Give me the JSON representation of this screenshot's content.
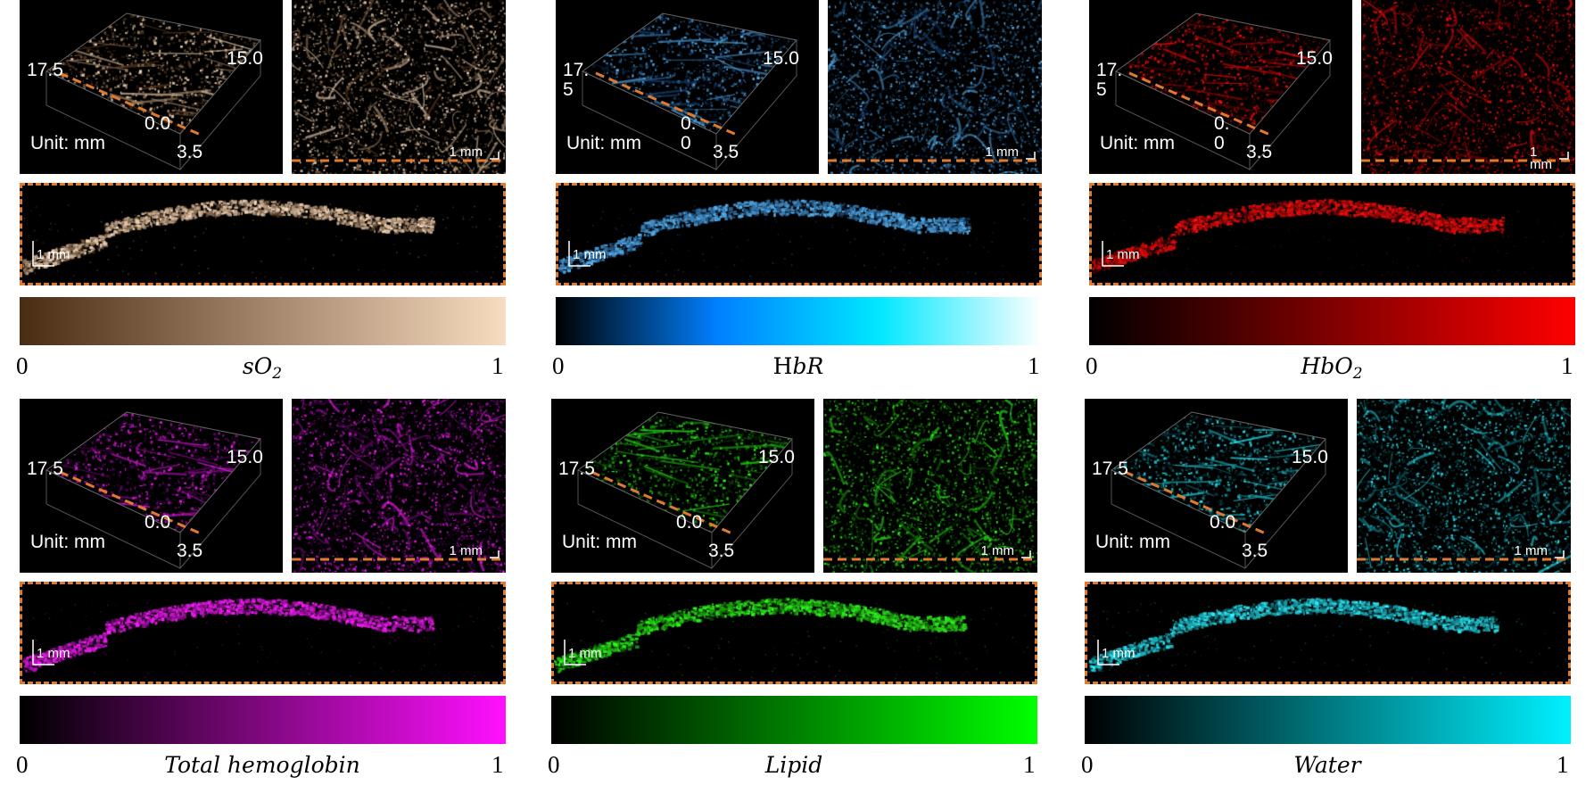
{
  "panels": [
    {
      "key": "so2",
      "caption_main": "sO",
      "caption_sub": "2",
      "caption_style": "italic",
      "color_low": "#4a2c12",
      "color_high": "#f8dcc0",
      "cbar_stops": [
        "#4a2c12",
        "#f8dcc0"
      ],
      "axis_a": "17.5",
      "axis_b": "15.0",
      "axis_c": "0.0",
      "axis_d": "3.5",
      "unit": "Unit: mm",
      "scale": "1 mm"
    },
    {
      "key": "hbr",
      "caption_pre": "H",
      "caption_main": "bR",
      "caption_sub": "",
      "caption_style": "mixed",
      "color_low": "#0a2a55",
      "color_high": "#5ab4f0",
      "cbar_stops": [
        "#000000",
        "#0080ff",
        "#00e8ff",
        "#ffffff"
      ],
      "axis_a": "17.\n5",
      "axis_b": "15.0",
      "axis_c": "0.\n0",
      "axis_d": "3.5",
      "unit": "Unit: mm",
      "scale": "1 mm"
    },
    {
      "key": "hbo2",
      "caption_main": "HbO",
      "caption_sub": "2",
      "caption_style": "italic",
      "color_low": "#400000",
      "color_high": "#ff1010",
      "cbar_stops": [
        "#000000",
        "#ff0000"
      ],
      "axis_a": "17.\n5",
      "axis_b": "15.0",
      "axis_c": "0.\n0",
      "axis_d": "3.5",
      "unit": "Unit: mm",
      "scale": "1\nmm"
    },
    {
      "key": "thb",
      "caption_main": "Total hemoglobin",
      "caption_sub": "",
      "caption_style": "italic",
      "color_low": "#3a0040",
      "color_high": "#ff20ff",
      "cbar_stops": [
        "#000000",
        "#ff10ff"
      ],
      "axis_a": "17.5",
      "axis_b": "15.0",
      "axis_c": "0.0",
      "axis_d": "3.5",
      "unit": "Unit: mm",
      "scale": "1 mm"
    },
    {
      "key": "lipid",
      "caption_main": "Lipid",
      "caption_sub": "",
      "caption_style": "italic",
      "color_low": "#0a3a00",
      "color_high": "#30ff20",
      "cbar_stops": [
        "#000000",
        "#00ff00"
      ],
      "axis_a": "17.5",
      "axis_b": "15.0",
      "axis_c": "0.0",
      "axis_d": "3.5",
      "unit": "Unit: mm",
      "scale": "1 mm"
    },
    {
      "key": "water",
      "caption_main": "Water",
      "caption_sub": "",
      "caption_style": "italic",
      "color_low": "#003a40",
      "color_high": "#30f0ff",
      "cbar_stops": [
        "#000000",
        "#00f0ff"
      ],
      "axis_a": "17.5",
      "axis_b": "15.0",
      "axis_c": "0.0",
      "axis_d": "3.5",
      "unit": "Unit: mm",
      "scale": "1 mm"
    }
  ],
  "cbar_min": "0",
  "cbar_max": "1"
}
